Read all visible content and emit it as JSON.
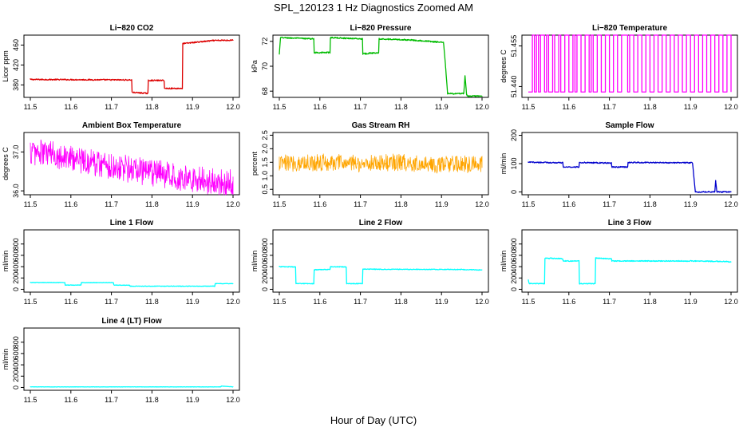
{
  "figure": {
    "title": "SPL_120123  1 Hz Diagnostics Zoomed AM",
    "xlabel": "Hour of Day (UTC)"
  },
  "chart_data": [
    {
      "type": "line",
      "title": "Li−820 CO2",
      "ylabel": "Licor ppm",
      "color": "#dd0000",
      "xlim": [
        11.5,
        12.0
      ],
      "ylim": [
        355,
        480
      ],
      "xticks": [
        11.5,
        11.6,
        11.7,
        11.8,
        11.9,
        12.0
      ],
      "xtick_labels": [
        "11.5",
        "11.6",
        "11.7",
        "11.8",
        "11.9",
        "12.0"
      ],
      "yticks": [
        380,
        420,
        460
      ],
      "ytick_labels": [
        "380",
        "420",
        "460"
      ],
      "noise": 1.2,
      "x": [
        11.5,
        11.75,
        11.751,
        11.79,
        11.791,
        11.83,
        11.831,
        11.875,
        11.876,
        11.9,
        11.95,
        12.0
      ],
      "y": [
        391,
        390,
        365,
        363,
        389,
        389,
        373,
        373,
        463,
        465,
        469,
        470
      ]
    },
    {
      "type": "line",
      "title": "Li−820 Pressure",
      "ylabel": "kPa",
      "color": "#00bb00",
      "xlim": [
        11.5,
        12.0
      ],
      "ylim": [
        67.5,
        72.5
      ],
      "xticks": [
        11.5,
        11.6,
        11.7,
        11.8,
        11.9,
        12.0
      ],
      "xtick_labels": [
        "11.5",
        "11.6",
        "11.7",
        "11.8",
        "11.9",
        "12.0"
      ],
      "yticks": [
        68,
        70,
        72
      ],
      "ytick_labels": [
        "68",
        "70",
        "72"
      ],
      "noise": 0.05,
      "x": [
        11.5,
        11.503,
        11.585,
        11.586,
        11.625,
        11.626,
        11.705,
        11.706,
        11.745,
        11.746,
        11.83,
        11.87,
        11.905,
        11.91,
        11.915,
        11.955,
        11.958,
        11.962,
        11.966,
        12.0
      ],
      "y": [
        71.0,
        72.3,
        72.2,
        71.1,
        71.1,
        72.3,
        72.2,
        71.0,
        71.1,
        72.2,
        72.1,
        72.0,
        71.9,
        70.0,
        67.8,
        67.8,
        69.2,
        67.7,
        67.6,
        67.6
      ]
    },
    {
      "type": "line",
      "title": "Li−820 Temperature",
      "ylabel": "degrees C",
      "color": "#ff00ff",
      "xlim": [
        11.5,
        12.0
      ],
      "ylim": [
        51.436,
        51.459
      ],
      "xticks": [
        11.5,
        11.6,
        11.7,
        11.8,
        11.9,
        12.0
      ],
      "xtick_labels": [
        "11.5",
        "11.6",
        "11.7",
        "11.8",
        "11.9",
        "12.0"
      ],
      "yticks": [
        51.44,
        51.455
      ],
      "ytick_labels": [
        "51.440",
        "51.455"
      ],
      "noise": 0,
      "x": [
        11.5,
        11.51,
        11.515,
        11.52,
        11.525,
        11.53,
        11.54,
        11.545,
        11.55,
        11.56,
        11.565,
        11.575,
        11.58,
        11.59,
        11.6,
        11.61,
        11.615,
        11.62,
        11.63,
        11.64,
        11.65,
        11.655,
        11.66,
        11.67,
        11.68,
        11.69,
        11.7,
        11.71,
        11.72,
        11.73,
        11.745,
        11.75,
        11.76,
        11.77,
        11.78,
        11.79,
        11.8,
        11.81,
        11.82,
        11.83,
        11.84,
        11.85,
        11.86,
        11.87,
        11.88,
        11.89,
        11.9,
        11.91,
        11.92,
        11.93,
        11.94,
        11.95,
        11.96,
        11.97,
        11.98,
        11.99,
        12.0
      ],
      "y": [
        51.438,
        51.459,
        51.438,
        51.459,
        51.438,
        51.459,
        51.438,
        51.459,
        51.438,
        51.459,
        51.438,
        51.459,
        51.438,
        51.459,
        51.438,
        51.459,
        51.438,
        51.459,
        51.438,
        51.459,
        51.438,
        51.459,
        51.438,
        51.459,
        51.438,
        51.459,
        51.438,
        51.459,
        51.438,
        51.459,
        51.438,
        51.459,
        51.438,
        51.459,
        51.438,
        51.459,
        51.438,
        51.459,
        51.438,
        51.459,
        51.438,
        51.459,
        51.438,
        51.459,
        51.438,
        51.459,
        51.438,
        51.459,
        51.438,
        51.459,
        51.438,
        51.459,
        51.438,
        51.459,
        51.438,
        51.459,
        51.438
      ]
    },
    {
      "type": "line",
      "title": "Ambient Box Temperature",
      "ylabel": "degrees C",
      "color": "#ff00ff",
      "xlim": [
        11.5,
        12.0
      ],
      "ylim": [
        35.9,
        37.5
      ],
      "xticks": [
        11.5,
        11.6,
        11.7,
        11.8,
        11.9,
        12.0
      ],
      "xtick_labels": [
        "11.5",
        "11.6",
        "11.7",
        "11.8",
        "11.9",
        "12.0"
      ],
      "yticks": [
        36.0,
        37.0
      ],
      "ytick_labels": [
        "36.0",
        "37.0"
      ],
      "noise": 0.35,
      "x": [
        11.5,
        11.55,
        11.6,
        11.65,
        11.7,
        11.75,
        11.8,
        11.85,
        11.9,
        11.95,
        12.0
      ],
      "y": [
        37.0,
        36.95,
        36.85,
        36.75,
        36.65,
        36.55,
        36.45,
        36.4,
        36.3,
        36.25,
        36.2
      ]
    },
    {
      "type": "line",
      "title": "Gas Stream RH",
      "ylabel": "percent",
      "color": "#ffa500",
      "xlim": [
        11.5,
        12.0
      ],
      "ylim": [
        0.3,
        2.6
      ],
      "xticks": [
        11.5,
        11.6,
        11.7,
        11.8,
        11.9,
        12.0
      ],
      "xtick_labels": [
        "11.5",
        "11.6",
        "11.7",
        "11.8",
        "11.9",
        "12.0"
      ],
      "yticks": [
        0.5,
        1.0,
        1.5,
        2.0,
        2.5
      ],
      "ytick_labels": [
        "0.5",
        "1.0",
        "1.5",
        "2.0",
        "2.5"
      ],
      "noise": 0.32,
      "x": [
        11.5,
        11.6,
        11.7,
        11.8,
        11.9,
        12.0
      ],
      "y": [
        1.45,
        1.5,
        1.45,
        1.5,
        1.4,
        1.45
      ]
    },
    {
      "type": "line",
      "title": "Sample Flow",
      "ylabel": "ml/min",
      "color": "#0000cc",
      "xlim": [
        11.5,
        12.0
      ],
      "ylim": [
        -10,
        210
      ],
      "xticks": [
        11.5,
        11.6,
        11.7,
        11.8,
        11.9,
        12.0
      ],
      "xtick_labels": [
        "11.5",
        "11.6",
        "11.7",
        "11.8",
        "11.9",
        "12.0"
      ],
      "yticks": [
        0,
        100,
        200
      ],
      "ytick_labels": [
        "0",
        "100",
        "200"
      ],
      "noise": 2,
      "x": [
        11.5,
        11.585,
        11.586,
        11.625,
        11.626,
        11.705,
        11.706,
        11.745,
        11.746,
        11.905,
        11.912,
        11.96,
        11.962,
        11.965,
        11.968,
        12.0
      ],
      "y": [
        105,
        103,
        88,
        88,
        104,
        102,
        88,
        88,
        104,
        103,
        0,
        0,
        40,
        0,
        0,
        0
      ]
    },
    {
      "type": "line",
      "title": "Line 1 Flow",
      "ylabel": "ml/min",
      "color": "#00ffff",
      "xlim": [
        11.5,
        12.0
      ],
      "ylim": [
        -50,
        1050
      ],
      "xticks": [
        11.5,
        11.6,
        11.7,
        11.8,
        11.9,
        12.0
      ],
      "xtick_labels": [
        "11.5",
        "11.6",
        "11.7",
        "11.8",
        "11.9",
        "12.0"
      ],
      "yticks": [
        0,
        200,
        400,
        600,
        800
      ],
      "ytick_labels": [
        "0",
        "200",
        "400",
        "600",
        "800"
      ],
      "noise": 4,
      "x": [
        11.5,
        11.585,
        11.586,
        11.625,
        11.626,
        11.705,
        11.706,
        11.745,
        11.746,
        11.955,
        11.956,
        12.0
      ],
      "y": [
        120,
        118,
        75,
        75,
        118,
        118,
        75,
        72,
        55,
        55,
        100,
        100
      ]
    },
    {
      "type": "line",
      "title": "Line 2 Flow",
      "ylabel": "ml/min",
      "color": "#00ffff",
      "xlim": [
        11.5,
        12.0
      ],
      "ylim": [
        -50,
        1050
      ],
      "xticks": [
        11.5,
        11.6,
        11.7,
        11.8,
        11.9,
        12.0
      ],
      "xtick_labels": [
        "11.5",
        "11.6",
        "11.7",
        "11.8",
        "11.9",
        "12.0"
      ],
      "yticks": [
        0,
        200,
        400,
        600,
        800
      ],
      "ytick_labels": [
        "0",
        "200",
        "400",
        "600",
        "800"
      ],
      "noise": 6,
      "x": [
        11.5,
        11.54,
        11.541,
        11.585,
        11.586,
        11.625,
        11.626,
        11.665,
        11.666,
        11.705,
        11.706,
        11.95,
        12.0
      ],
      "y": [
        400,
        395,
        100,
        100,
        345,
        350,
        400,
        395,
        100,
        100,
        355,
        350,
        340
      ]
    },
    {
      "type": "line",
      "title": "Line 3 Flow",
      "ylabel": "ml/min",
      "color": "#00ffff",
      "xlim": [
        11.5,
        12.0
      ],
      "ylim": [
        -50,
        1050
      ],
      "xticks": [
        11.5,
        11.6,
        11.7,
        11.8,
        11.9,
        12.0
      ],
      "xtick_labels": [
        "11.5",
        "11.6",
        "11.7",
        "11.8",
        "11.9",
        "12.0"
      ],
      "yticks": [
        0,
        200,
        400,
        600,
        800
      ],
      "ytick_labels": [
        "0",
        "200",
        "400",
        "600",
        "800"
      ],
      "noise": 8,
      "x": [
        11.5,
        11.502,
        11.54,
        11.541,
        11.585,
        11.586,
        11.625,
        11.626,
        11.665,
        11.666,
        11.705,
        11.706,
        11.9,
        11.99,
        12.0
      ],
      "y": [
        170,
        100,
        100,
        550,
        540,
        500,
        500,
        100,
        100,
        550,
        540,
        500,
        500,
        490,
        480
      ]
    },
    {
      "type": "line",
      "title": "Line 4 (LT) Flow",
      "ylabel": "ml/min",
      "color": "#00ffff",
      "xlim": [
        11.5,
        12.0
      ],
      "ylim": [
        -50,
        1050
      ],
      "xticks": [
        11.5,
        11.6,
        11.7,
        11.8,
        11.9,
        12.0
      ],
      "xtick_labels": [
        "11.5",
        "11.6",
        "11.7",
        "11.8",
        "11.9",
        "12.0"
      ],
      "yticks": [
        0,
        200,
        400,
        600,
        800
      ],
      "ytick_labels": [
        "0",
        "200",
        "400",
        "600",
        "800"
      ],
      "noise": 2,
      "x": [
        11.5,
        11.6,
        11.7,
        11.8,
        11.9,
        11.97,
        11.971,
        12.0
      ],
      "y": [
        10,
        10,
        10,
        10,
        10,
        10,
        25,
        10
      ]
    }
  ]
}
